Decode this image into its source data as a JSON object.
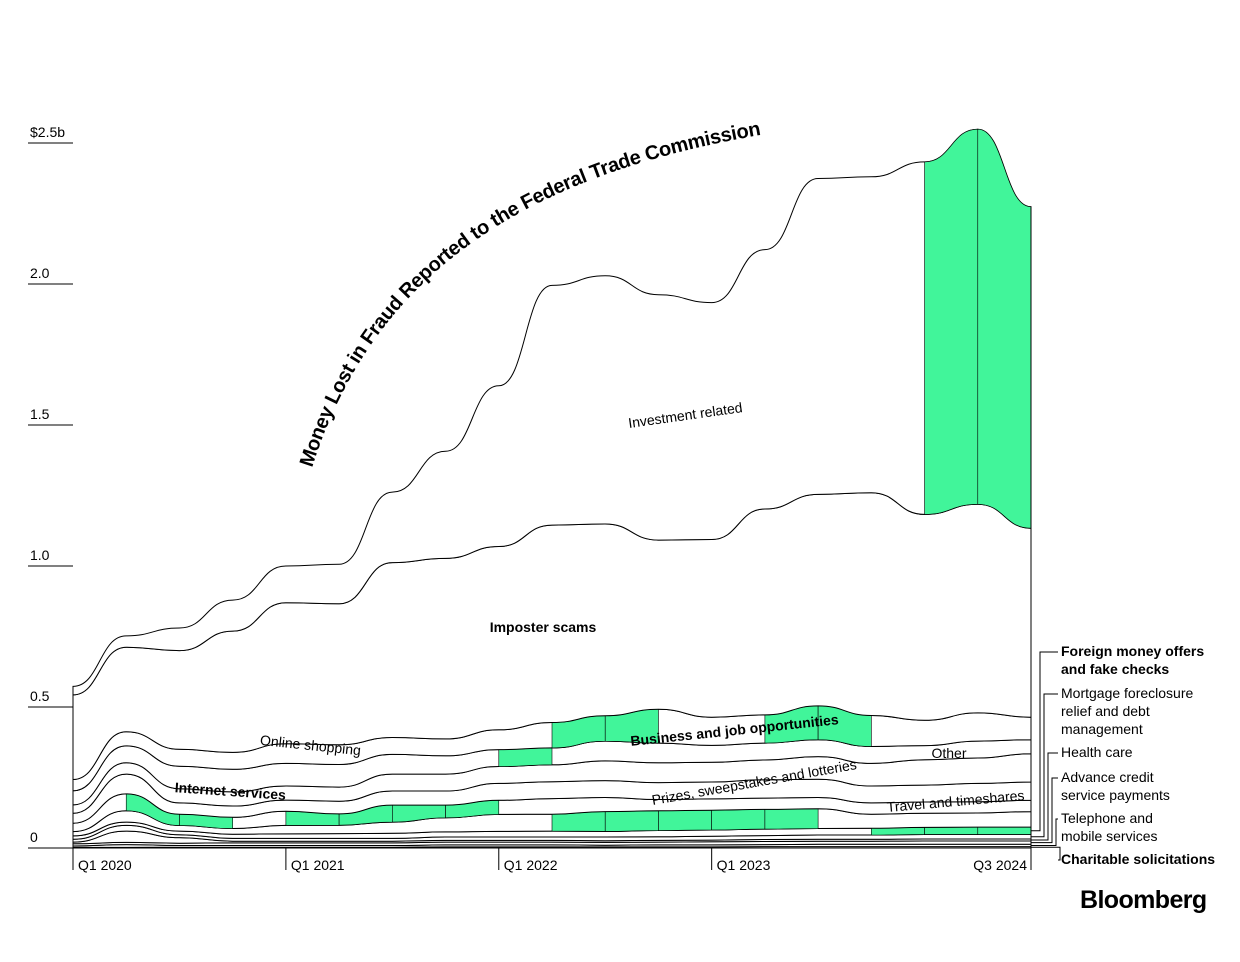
{
  "title": "Money Lost in Fraud Reported to the Federal Trade Commission",
  "brand": "Bloomberg",
  "accent_color": "#41f59a",
  "chart_data": {
    "type": "area",
    "subtype": "streamgraph",
    "title": "Money Lost in Fraud Reported to the Federal Trade Commission",
    "y_unit": "USD billions",
    "ylim": [
      0,
      2.8
    ],
    "y_ticks": [
      {
        "value": 0,
        "label": "0"
      },
      {
        "value": 0.5,
        "label": "0.5"
      },
      {
        "value": 1.0,
        "label": "1.0"
      },
      {
        "value": 1.5,
        "label": "1.5"
      },
      {
        "value": 2.0,
        "label": "2.0"
      },
      {
        "value": 2.5,
        "label": "$2.5b"
      }
    ],
    "x_ticks": [
      "Q1 2020",
      "Q1 2021",
      "Q1 2022",
      "Q1 2023",
      "Q3 2024"
    ],
    "x": [
      "Q1 2020",
      "Q2 2020",
      "Q3 2020",
      "Q4 2020",
      "Q1 2021",
      "Q2 2021",
      "Q3 2021",
      "Q4 2021",
      "Q1 2022",
      "Q2 2022",
      "Q3 2022",
      "Q4 2022",
      "Q1 2023",
      "Q2 2023",
      "Q3 2023",
      "Q4 2023",
      "Q1 2024",
      "Q2 2024",
      "Q3 2024"
    ],
    "grid": false,
    "legend": "right",
    "series": [
      {
        "name": "Charitable solicitations",
        "values": [
          0.002,
          0.002,
          0.003,
          0.003,
          0.003,
          0.003,
          0.003,
          0.004,
          0.004,
          0.004,
          0.004,
          0.004,
          0.004,
          0.005,
          0.005,
          0.005,
          0.005,
          0.005,
          0.005
        ]
      },
      {
        "name": "Telephone and mobile services",
        "values": [
          0.005,
          0.01,
          0.006,
          0.006,
          0.006,
          0.006,
          0.006,
          0.007,
          0.007,
          0.007,
          0.006,
          0.007,
          0.007,
          0.007,
          0.008,
          0.008,
          0.008,
          0.008,
          0.008
        ]
      },
      {
        "name": "Advance credit service payments",
        "values": [
          0.008,
          0.008,
          0.008,
          0.009,
          0.009,
          0.009,
          0.009,
          0.01,
          0.01,
          0.01,
          0.01,
          0.01,
          0.011,
          0.011,
          0.011,
          0.011,
          0.012,
          0.012,
          0.012
        ]
      },
      {
        "name": "Health care",
        "values": [
          0.006,
          0.04,
          0.02,
          0.006,
          0.006,
          0.006,
          0.006,
          0.006,
          0.006,
          0.006,
          0.006,
          0.006,
          0.006,
          0.007,
          0.007,
          0.007,
          0.007,
          0.007,
          0.007
        ]
      },
      {
        "name": "Mortgage foreclosure relief and debt management",
        "values": [
          0.01,
          0.02,
          0.01,
          0.01,
          0.01,
          0.01,
          0.01,
          0.012,
          0.012,
          0.012,
          0.013,
          0.013,
          0.014,
          0.014,
          0.015,
          0.015,
          0.016,
          0.016,
          0.016
        ]
      },
      {
        "name": "Foreign money offers and fake checks",
        "values": [
          0.012,
          0.012,
          0.013,
          0.015,
          0.016,
          0.017,
          0.018,
          0.018,
          0.02,
          0.021,
          0.02,
          0.022,
          0.022,
          0.023,
          0.023,
          0.024,
          0.025,
          0.026,
          0.026
        ]
      },
      {
        "name": "Travel and timeshares",
        "values": [
          0.015,
          0.04,
          0.02,
          0.02,
          0.03,
          0.03,
          0.04,
          0.05,
          0.06,
          0.06,
          0.07,
          0.07,
          0.07,
          0.07,
          0.07,
          0.05,
          0.05,
          0.05,
          0.055
        ]
      },
      {
        "name": "Internet services",
        "values": [
          0.03,
          0.06,
          0.04,
          0.04,
          0.05,
          0.04,
          0.06,
          0.045,
          0.05,
          0.055,
          0.05,
          0.04,
          0.04,
          0.04,
          0.04,
          0.04,
          0.04,
          0.04,
          0.04
        ]
      },
      {
        "name": "Prizes, sweepstakes and lotteries",
        "values": [
          0.035,
          0.07,
          0.04,
          0.04,
          0.04,
          0.045,
          0.05,
          0.05,
          0.06,
          0.06,
          0.06,
          0.06,
          0.06,
          0.065,
          0.065,
          0.06,
          0.06,
          0.065,
          0.065
        ]
      },
      {
        "name": "Other",
        "values": [
          0.03,
          0.04,
          0.05,
          0.05,
          0.05,
          0.05,
          0.06,
          0.06,
          0.06,
          0.06,
          0.07,
          0.07,
          0.07,
          0.07,
          0.08,
          0.08,
          0.09,
          0.09,
          0.1
        ]
      },
      {
        "name": "Online shopping",
        "values": [
          0.05,
          0.06,
          0.08,
          0.08,
          0.08,
          0.08,
          0.07,
          0.065,
          0.06,
          0.06,
          0.07,
          0.07,
          0.06,
          0.06,
          0.06,
          0.06,
          0.05,
          0.06,
          0.05
        ]
      },
      {
        "name": "Business and job opportunities",
        "values": [
          0.04,
          0.05,
          0.06,
          0.06,
          0.07,
          0.07,
          0.06,
          0.06,
          0.07,
          0.09,
          0.09,
          0.12,
          0.1,
          0.1,
          0.12,
          0.11,
          0.09,
          0.1,
          0.08
        ]
      },
      {
        "name": "Imposter scams",
        "values": [
          0.3,
          0.3,
          0.35,
          0.43,
          0.5,
          0.5,
          0.62,
          0.64,
          0.65,
          0.7,
          0.68,
          0.6,
          0.63,
          0.73,
          0.75,
          0.79,
          0.73,
          0.74,
          0.67
        ]
      },
      {
        "name": "Investment related",
        "values": [
          0.03,
          0.04,
          0.08,
          0.11,
          0.13,
          0.14,
          0.25,
          0.38,
          0.57,
          0.85,
          0.88,
          0.87,
          0.84,
          0.92,
          1.12,
          1.12,
          1.25,
          1.33,
          1.14
        ]
      }
    ]
  },
  "legend_items": [
    {
      "lines": [
        "Foreign money offers",
        "and fake checks"
      ],
      "bold": true
    },
    {
      "lines": [
        "Mortgage foreclosure",
        "relief and debt",
        "management"
      ],
      "bold": false
    },
    {
      "lines": [
        "Health care"
      ],
      "bold": false
    },
    {
      "lines": [
        "Advance credit",
        "service payments"
      ],
      "bold": false
    },
    {
      "lines": [
        "Telephone and",
        "mobile services"
      ],
      "bold": false
    },
    {
      "lines": [
        "Charitable solicitations"
      ],
      "bold": true
    }
  ],
  "annotations": [
    {
      "text": "Investment related",
      "bold": false
    },
    {
      "text": "Imposter scams",
      "bold": true
    },
    {
      "text": "Online shopping",
      "bold": false
    },
    {
      "text": "Business and job opportunities",
      "bold": true
    },
    {
      "text": "Other",
      "bold": false
    },
    {
      "text": "Internet services",
      "bold": true
    },
    {
      "text": "Prizes, sweepstakes and lotteries",
      "bold": false
    },
    {
      "text": "Travel and timeshares",
      "bold": false
    }
  ]
}
